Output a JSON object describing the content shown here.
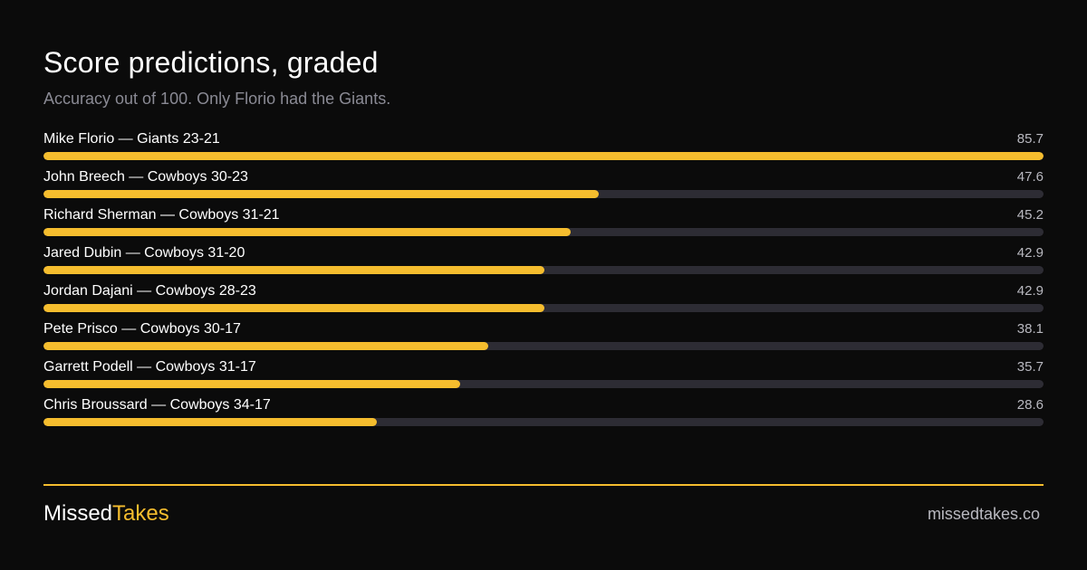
{
  "chart_data": {
    "type": "bar",
    "title": "Score predictions, graded",
    "subtitle": "Accuracy out of 100. Only Florio had the Giants.",
    "categories": [
      "Mike Florio — Giants 23-21",
      "John Breech — Cowboys 30-23",
      "Richard Sherman — Cowboys 31-21",
      "Jared Dubin — Cowboys 31-20",
      "Jordan Dajani — Cowboys 28-23",
      "Pete Prisco — Cowboys 30-17",
      "Garrett Podell — Cowboys 31-17",
      "Chris Broussard — Cowboys 34-17"
    ],
    "values": [
      85.7,
      47.6,
      45.2,
      42.9,
      42.9,
      38.1,
      35.7,
      28.6
    ],
    "value_labels": [
      "85.7",
      "47.6",
      "45.2",
      "42.9",
      "42.9",
      "38.1",
      "35.7",
      "28.6"
    ],
    "xlim": [
      0,
      85.7
    ],
    "orientation": "horizontal",
    "grid": false
  },
  "colors": {
    "background": "#0b0b0b",
    "bar": "#f5bd2e",
    "track": "#2d2c34",
    "accent": "#f5bd2e"
  },
  "footer": {
    "brand_part1": "Missed",
    "brand_part2": "Takes",
    "site": "missedtakes.co"
  }
}
